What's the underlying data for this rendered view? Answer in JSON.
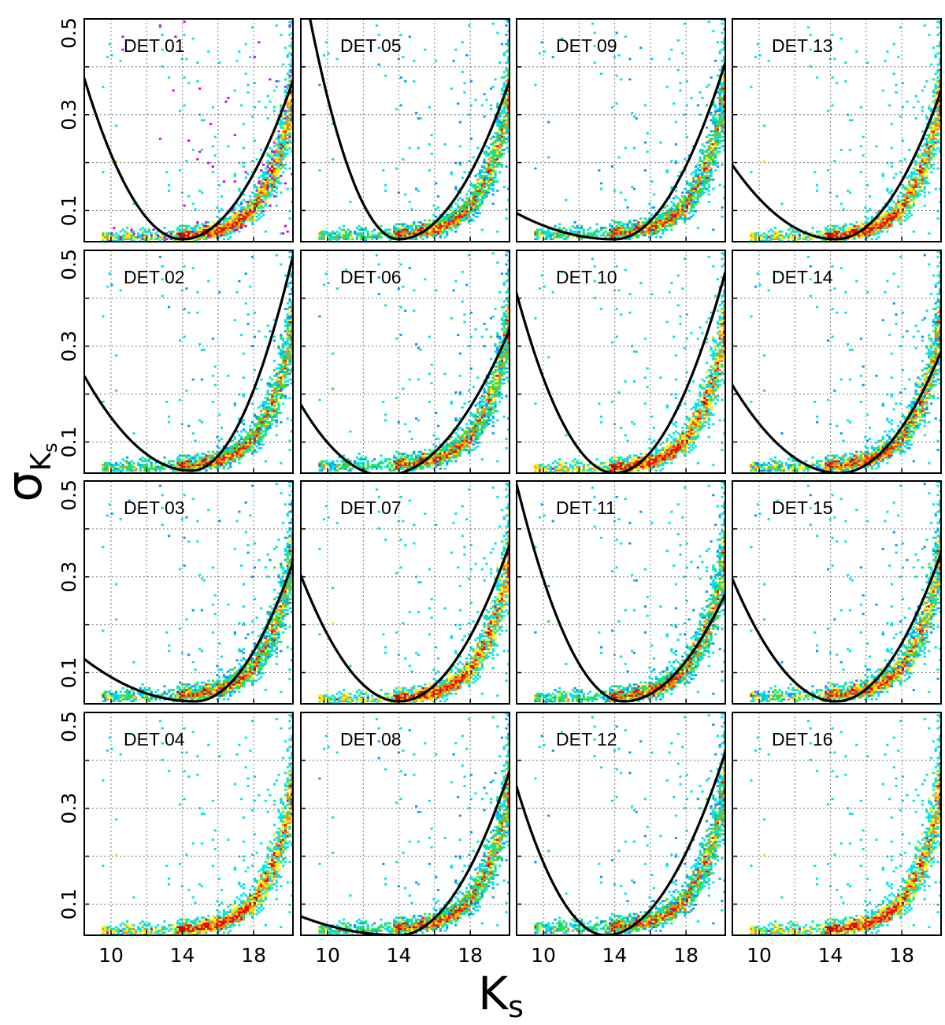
{
  "chart_data": {
    "type": "heatmap",
    "layout": "4x4 grid of density panels with polynomial fit curves",
    "xlabel": "K",
    "xlabel_sub": "s",
    "ylabel": "σ",
    "ylabel_sub": "K",
    "ylabel_subsub": "s",
    "xlim": [
      8.5,
      20.2
    ],
    "ylim": [
      0.035,
      0.5
    ],
    "x_ticks": [
      10,
      14,
      18
    ],
    "x_tick_labels": [
      "10",
      "14",
      "18"
    ],
    "x_minor_ticks": [
      12,
      16
    ],
    "y_ticks": [
      0.1,
      0.3,
      0.5
    ],
    "y_tick_labels": [
      "0.1",
      "0.3",
      "0.5"
    ],
    "y_minor_ticks": [
      0.2,
      0.4
    ],
    "grid": true,
    "colormap": [
      "#ffe6fa",
      "#ff55ff",
      "#cc00ff",
      "#7a1fd6",
      "#1a2bff",
      "#0099ff",
      "#00e5e5",
      "#33dd33",
      "#ffee00",
      "#ff8800",
      "#ee1111",
      "#cc0000"
    ],
    "curve_color": "#000000",
    "panels": [
      {
        "label": "DET 01",
        "has_fit": true,
        "fit": {
          "xmin": 14.0,
          "ymin": 0.04,
          "a": 0.0111,
          "b": 0.0086,
          "xend": 20.2
        }
      },
      {
        "label": "DET 05",
        "has_fit": true,
        "fit": {
          "xmin": 14.0,
          "ymin": 0.04,
          "a": 0.0185,
          "b": 0.0086,
          "xend": 20.2
        }
      },
      {
        "label": "DET 09",
        "has_fit": true,
        "fit": {
          "xmin": 14.0,
          "ymin": 0.04,
          "a": 0.0018,
          "b": 0.0096,
          "xend": 20.2
        }
      },
      {
        "label": "DET 13",
        "has_fit": true,
        "fit": {
          "xmin": 14.3,
          "ymin": 0.04,
          "a": 0.0046,
          "b": 0.0089,
          "xend": 20.2
        }
      },
      {
        "label": "DET 02",
        "has_fit": true,
        "fit": {
          "xmin": 14.5,
          "ymin": 0.04,
          "a": 0.0055,
          "b": 0.0138,
          "xend": 20.2
        }
      },
      {
        "label": "DET 06",
        "has_fit": true,
        "fit": {
          "xmin": 13.2,
          "ymin": 0.03,
          "a": 0.0067,
          "b": 0.0062,
          "xend": 20.2
        }
      },
      {
        "label": "DET 10",
        "has_fit": true,
        "fit": {
          "xmin": 14.0,
          "ymin": 0.035,
          "a": 0.0124,
          "b": 0.0109,
          "xend": 20.2
        }
      },
      {
        "label": "DET 14",
        "has_fit": true,
        "fit": {
          "xmin": 14.5,
          "ymin": 0.035,
          "a": 0.0051,
          "b": 0.0078,
          "xend": 20.2
        }
      },
      {
        "label": "DET 03",
        "has_fit": true,
        "fit": {
          "xmin": 14.7,
          "ymin": 0.04,
          "a": 0.0023,
          "b": 0.0096,
          "xend": 20.2
        }
      },
      {
        "label": "DET 07",
        "has_fit": true,
        "fit": {
          "xmin": 14.0,
          "ymin": 0.04,
          "a": 0.0087,
          "b": 0.0085,
          "xend": 20.2
        }
      },
      {
        "label": "DET 11",
        "has_fit": true,
        "fit": {
          "xmin": 14.5,
          "ymin": 0.04,
          "a": 0.0126,
          "b": 0.0069,
          "xend": 20.2
        }
      },
      {
        "label": "DET 15",
        "has_fit": true,
        "fit": {
          "xmin": 14.3,
          "ymin": 0.04,
          "a": 0.0076,
          "b": 0.0089,
          "xend": 20.2
        }
      },
      {
        "label": "DET 04",
        "has_fit": false
      },
      {
        "label": "DET 08",
        "has_fit": true,
        "fit": {
          "xmin": 14.0,
          "ymin": 0.035,
          "a": 0.0013,
          "b": 0.0089,
          "xend": 20.2
        }
      },
      {
        "label": "DET 12",
        "has_fit": true,
        "fit": {
          "xmin": 13.5,
          "ymin": 0.035,
          "a": 0.0124,
          "b": 0.0085,
          "xend": 20.2
        }
      },
      {
        "label": "DET 16",
        "has_fit": false
      }
    ]
  }
}
